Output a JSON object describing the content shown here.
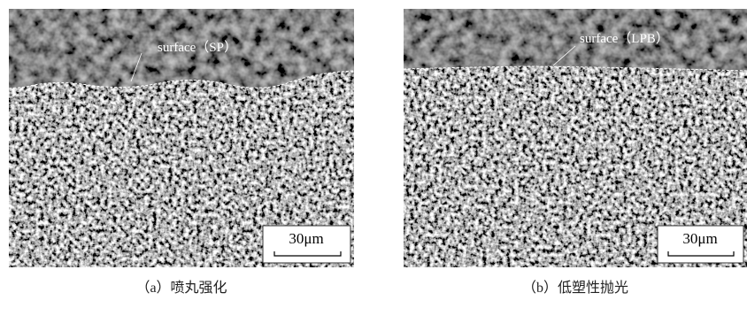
{
  "panels": [
    {
      "surface_label": "surface（SP）",
      "scale_bar": "30μm",
      "caption": "（a）喷丸强化"
    },
    {
      "surface_label": "surface（LPB）",
      "scale_bar": "30μm",
      "caption": "（b）低塑性抛光"
    }
  ]
}
